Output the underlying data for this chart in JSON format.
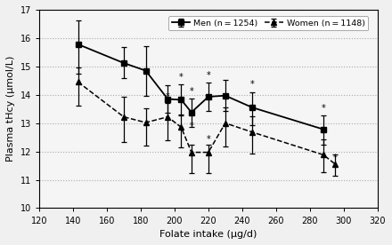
{
  "men_x": [
    143,
    170,
    183,
    196,
    204,
    210,
    220,
    230,
    246,
    288
  ],
  "men_y": [
    15.78,
    15.12,
    14.85,
    13.85,
    13.82,
    13.38,
    13.93,
    13.97,
    13.55,
    12.78
  ],
  "men_yerr_low": [
    1.05,
    0.52,
    0.9,
    0.5,
    0.55,
    0.5,
    0.5,
    0.55,
    0.62,
    0.55
  ],
  "men_yerr_high": [
    0.85,
    0.55,
    0.85,
    0.5,
    0.55,
    0.5,
    0.5,
    0.55,
    0.55,
    0.5
  ],
  "women_x": [
    143,
    170,
    183,
    196,
    204,
    210,
    220,
    230,
    246,
    288,
    295
  ],
  "women_y": [
    14.45,
    13.22,
    13.02,
    13.22,
    12.85,
    11.97,
    11.97,
    13.0,
    12.68,
    11.88,
    11.55
  ],
  "women_yerr_low": [
    0.82,
    0.88,
    0.82,
    0.82,
    0.7,
    0.72,
    0.72,
    0.82,
    0.75,
    0.62,
    0.42
  ],
  "women_yerr_high": [
    0.5,
    0.72,
    0.5,
    0.5,
    0.45,
    0.28,
    0.28,
    0.55,
    0.55,
    0.55,
    0.35
  ],
  "men_star_x": [
    204,
    210,
    220,
    246,
    288
  ],
  "men_star_y": [
    14.45,
    13.95,
    14.52,
    14.22,
    13.38
  ],
  "women_star_x": [
    196,
    204,
    210,
    220,
    230,
    246,
    288,
    295
  ],
  "women_star_y": [
    13.78,
    13.62,
    12.75,
    12.28,
    13.65,
    13.32,
    12.55,
    11.62
  ],
  "xlabel": "Folate intake (μg/d)",
  "ylabel": "Plasma tHcy (μmol/L)",
  "xlim": [
    120,
    320
  ],
  "ylim": [
    10,
    17
  ],
  "xticks": [
    120,
    140,
    160,
    180,
    200,
    220,
    240,
    260,
    280,
    300,
    320
  ],
  "yticks": [
    10,
    11,
    12,
    13,
    14,
    15,
    16,
    17
  ],
  "legend_men": "Men (n = 1254)",
  "legend_women": "Women (n = 1148)",
  "color": "black",
  "grid_color": "#aaaaaa",
  "bg_color": "#f5f5f5"
}
